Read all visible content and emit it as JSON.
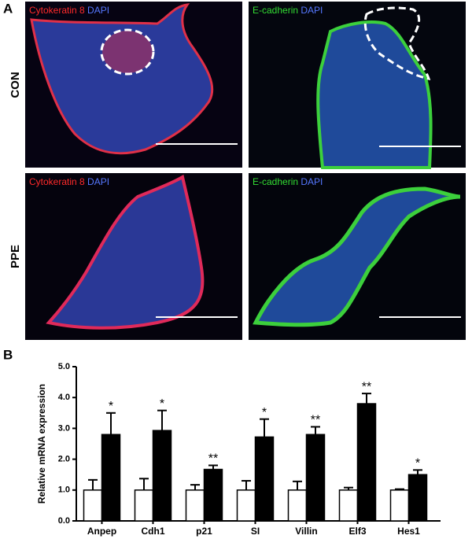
{
  "panel_a": {
    "label": "A",
    "rows": [
      "CON",
      "PPE"
    ],
    "images": [
      {
        "stains": [
          {
            "text": "Cytokeratin 8",
            "color": "#ff2a2a"
          },
          {
            "text": "DAPI",
            "color": "#5577ff"
          }
        ]
      },
      {
        "stains": [
          {
            "text": "E-cadherin",
            "color": "#33dd33"
          },
          {
            "text": "DAPI",
            "color": "#5577ff"
          }
        ]
      },
      {
        "stains": [
          {
            "text": "Cytokeratin 8",
            "color": "#ff2a2a"
          },
          {
            "text": "DAPI",
            "color": "#5577ff"
          }
        ]
      },
      {
        "stains": [
          {
            "text": "E-cadherin",
            "color": "#33dd33"
          },
          {
            "text": "DAPI",
            "color": "#5577ff"
          }
        ]
      }
    ]
  },
  "panel_b_label": "B",
  "chart_data": {
    "type": "bar",
    "y_label": "Relative mRNA expression",
    "categories": [
      "Anpep",
      "Cdh1",
      "p21",
      "SI",
      "Villin",
      "Elf3",
      "Hes1"
    ],
    "series": [
      {
        "color": "#ffffff",
        "values": [
          1.0,
          1.0,
          1.0,
          1.0,
          1.0,
          1.0,
          1.0
        ],
        "errors": [
          0.33,
          0.37,
          0.17,
          0.3,
          0.28,
          0.08,
          0.03
        ]
      },
      {
        "color": "#000000",
        "values": [
          2.8,
          2.93,
          1.67,
          2.72,
          2.8,
          3.8,
          1.5
        ],
        "errors": [
          0.7,
          0.65,
          0.13,
          0.58,
          0.25,
          0.33,
          0.15
        ],
        "annotations": [
          "*",
          "*",
          "**",
          "*",
          "**",
          "**",
          "*"
        ]
      }
    ],
    "ylim": [
      0,
      5
    ],
    "yticks": [
      {
        "value": 0,
        "label": "0.0"
      },
      {
        "value": 1,
        "label": "1.0"
      },
      {
        "value": 2,
        "label": "2.0"
      },
      {
        "value": 3,
        "label": "3.0"
      },
      {
        "value": 4,
        "label": "4.0"
      },
      {
        "value": 5,
        "label": "5.0"
      }
    ]
  }
}
